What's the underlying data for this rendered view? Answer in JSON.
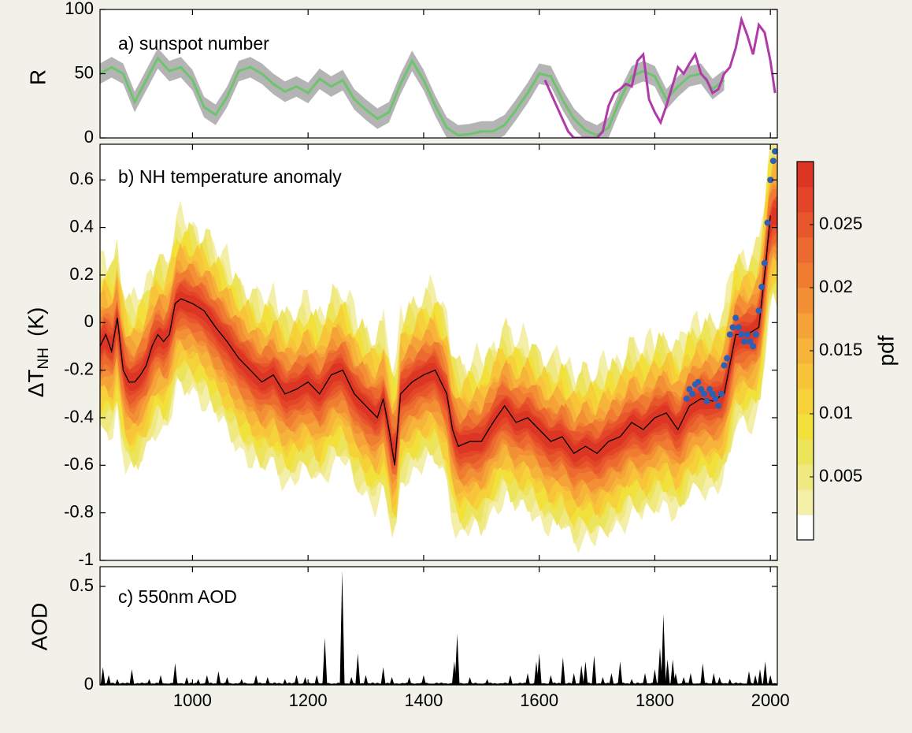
{
  "chart_data": [
    {
      "type": "line",
      "panel_label": "a) sunspot number",
      "ylabel": "R",
      "xlim": [
        840,
        2012
      ],
      "ylim": [
        0,
        100
      ],
      "yticks": [
        0,
        50,
        100
      ],
      "x_ticks_shown": false,
      "series": [
        {
          "color": "#6cc56c",
          "band_color": "#b4b4b4",
          "x": [
            840,
            860,
            880,
            900,
            920,
            940,
            960,
            980,
            1000,
            1020,
            1040,
            1060,
            1080,
            1100,
            1120,
            1140,
            1160,
            1180,
            1200,
            1220,
            1240,
            1260,
            1280,
            1300,
            1320,
            1340,
            1360,
            1380,
            1400,
            1420,
            1440,
            1460,
            1480,
            1500,
            1520,
            1540,
            1560,
            1580,
            1600,
            1620,
            1640,
            1660,
            1680,
            1700,
            1720,
            1740,
            1760,
            1780,
            1800,
            1820,
            1840,
            1860,
            1880,
            1900,
            1920
          ],
          "y": [
            50,
            55,
            50,
            28,
            45,
            62,
            52,
            55,
            45,
            24,
            18,
            32,
            52,
            55,
            50,
            42,
            36,
            40,
            35,
            46,
            40,
            45,
            30,
            22,
            15,
            20,
            42,
            60,
            45,
            25,
            8,
            2,
            3,
            5,
            5,
            10,
            22,
            35,
            50,
            48,
            30,
            15,
            6,
            2,
            8,
            30,
            48,
            52,
            48,
            30,
            40,
            48,
            50,
            38,
            45
          ],
          "band_half_width": 8
        },
        {
          "color": "#b03aa8",
          "x": [
            1610,
            1625,
            1640,
            1650,
            1660,
            1670,
            1680,
            1690,
            1700,
            1710,
            1720,
            1730,
            1740,
            1750,
            1760,
            1770,
            1780,
            1790,
            1800,
            1810,
            1820,
            1830,
            1840,
            1850,
            1860,
            1870,
            1880,
            1890,
            1900,
            1910,
            1920,
            1930,
            1940,
            1950,
            1960,
            1970,
            1980,
            1990,
            2000,
            2008
          ],
          "y": [
            45,
            30,
            15,
            5,
            0,
            0,
            0,
            0,
            0,
            5,
            25,
            35,
            38,
            42,
            40,
            60,
            65,
            30,
            20,
            12,
            25,
            40,
            55,
            50,
            58,
            65,
            50,
            45,
            35,
            38,
            50,
            55,
            70,
            92,
            80,
            65,
            88,
            82,
            60,
            35
          ]
        }
      ]
    },
    {
      "type": "heatmap",
      "panel_label": "b) NH temperature anomaly",
      "ylabel": "ΔT",
      "ylabel_subscript": "NH",
      "ylabel_unit": "(K)",
      "xlim": [
        840,
        2012
      ],
      "ylim": [
        -1,
        0.75
      ],
      "yticks": [
        -1,
        -0.8,
        -0.6,
        -0.4,
        -0.2,
        0,
        0.2,
        0.4,
        0.6
      ],
      "ytick_labels": [
        "-1",
        "-0.8",
        "-0.6",
        "-0.4",
        "-0.2",
        "0",
        "0.2",
        "0.4",
        "0.6"
      ],
      "x_ticks_shown": false,
      "median": {
        "color": "#000000",
        "x": [
          840,
          850,
          860,
          870,
          880,
          890,
          900,
          910,
          920,
          930,
          940,
          950,
          960,
          970,
          980,
          1000,
          1020,
          1040,
          1060,
          1080,
          1100,
          1120,
          1140,
          1160,
          1180,
          1200,
          1220,
          1240,
          1260,
          1280,
          1300,
          1320,
          1330,
          1340,
          1350,
          1360,
          1380,
          1400,
          1420,
          1440,
          1450,
          1460,
          1480,
          1500,
          1520,
          1540,
          1560,
          1580,
          1600,
          1620,
          1640,
          1660,
          1680,
          1700,
          1720,
          1740,
          1760,
          1780,
          1800,
          1820,
          1840,
          1860,
          1880,
          1900,
          1920,
          1940,
          1960,
          1980,
          1990,
          2000
        ],
        "y": [
          -0.1,
          -0.05,
          -0.12,
          0.02,
          -0.2,
          -0.25,
          -0.25,
          -0.22,
          -0.18,
          -0.1,
          -0.05,
          -0.08,
          -0.05,
          0.08,
          0.1,
          0.08,
          0.05,
          -0.02,
          -0.08,
          -0.15,
          -0.2,
          -0.25,
          -0.22,
          -0.3,
          -0.28,
          -0.25,
          -0.3,
          -0.22,
          -0.2,
          -0.3,
          -0.35,
          -0.4,
          -0.32,
          -0.45,
          -0.6,
          -0.3,
          -0.25,
          -0.22,
          -0.2,
          -0.3,
          -0.45,
          -0.52,
          -0.5,
          -0.5,
          -0.42,
          -0.35,
          -0.42,
          -0.4,
          -0.45,
          -0.5,
          -0.48,
          -0.55,
          -0.52,
          -0.55,
          -0.5,
          -0.48,
          -0.42,
          -0.45,
          -0.4,
          -0.38,
          -0.45,
          -0.35,
          -0.32,
          -0.33,
          -0.3,
          -0.05,
          -0.05,
          -0.02,
          0.2,
          0.45
        ],
        "band_half_width": 0.3
      },
      "observations": {
        "color": "#2f5fb5",
        "x": [
          1855,
          1860,
          1865,
          1870,
          1875,
          1880,
          1885,
          1890,
          1895,
          1900,
          1905,
          1910,
          1915,
          1920,
          1925,
          1930,
          1935,
          1940,
          1945,
          1950,
          1955,
          1960,
          1965,
          1970,
          1975,
          1980,
          1985,
          1990,
          1995,
          2000,
          2005,
          2008
        ],
        "y": [
          -0.32,
          -0.28,
          -0.3,
          -0.26,
          -0.25,
          -0.28,
          -0.3,
          -0.33,
          -0.28,
          -0.3,
          -0.32,
          -0.35,
          -0.3,
          -0.18,
          -0.15,
          -0.05,
          -0.02,
          0.02,
          -0.02,
          -0.05,
          -0.08,
          -0.05,
          -0.08,
          -0.1,
          -0.05,
          0.05,
          0.15,
          0.25,
          0.42,
          0.6,
          0.68,
          0.72
        ]
      },
      "colorbar": {
        "label": "pdf",
        "ticks": [
          0.005,
          0.01,
          0.015,
          0.02,
          0.025
        ],
        "tick_labels": [
          "0.005",
          "0.01",
          "0.015",
          "0.02",
          "0.025"
        ],
        "range": [
          0,
          0.03
        ],
        "colors": [
          "#ffffff",
          "#f3eea8",
          "#f0e880",
          "#ece45a",
          "#f2e13a",
          "#f6d23a",
          "#f8c43a",
          "#f6b43a",
          "#f5a238",
          "#f38f35",
          "#f07c32",
          "#ec6a2f",
          "#e7572b",
          "#e24527",
          "#dc3524"
        ]
      }
    },
    {
      "type": "bar",
      "panel_label": "c) 550nm AOD",
      "ylabel": "AOD",
      "xlim": [
        840,
        2012
      ],
      "ylim": [
        0,
        0.6
      ],
      "yticks": [
        0,
        0.5
      ],
      "ytick_labels": [
        "0",
        "0.5"
      ],
      "xticks": [
        1000,
        1200,
        1400,
        1600,
        1800,
        2000
      ],
      "spikes": {
        "x": [
          845,
          855,
          870,
          895,
          925,
          945,
          970,
          990,
          1010,
          1025,
          1045,
          1060,
          1085,
          1110,
          1130,
          1160,
          1180,
          1195,
          1215,
          1229,
          1259,
          1275,
          1286,
          1300,
          1330,
          1345,
          1375,
          1400,
          1453,
          1458,
          1480,
          1510,
          1550,
          1580,
          1595,
          1600,
          1620,
          1641,
          1660,
          1673,
          1680,
          1695,
          1710,
          1725,
          1740,
          1760,
          1783,
          1800,
          1809,
          1815,
          1822,
          1831,
          1836,
          1850,
          1862,
          1883,
          1902,
          1912,
          1930,
          1963,
          1974,
          1982,
          1991,
          2000
        ],
        "y": [
          0.09,
          0.05,
          0.03,
          0.08,
          0.03,
          0.05,
          0.11,
          0.04,
          0.03,
          0.05,
          0.07,
          0.04,
          0.03,
          0.05,
          0.04,
          0.03,
          0.05,
          0.04,
          0.05,
          0.24,
          0.58,
          0.04,
          0.16,
          0.05,
          0.09,
          0.04,
          0.04,
          0.05,
          0.12,
          0.26,
          0.04,
          0.03,
          0.05,
          0.06,
          0.12,
          0.16,
          0.05,
          0.14,
          0.06,
          0.1,
          0.12,
          0.15,
          0.04,
          0.06,
          0.12,
          0.03,
          0.06,
          0.08,
          0.19,
          0.36,
          0.13,
          0.13,
          0.06,
          0.04,
          0.06,
          0.11,
          0.06,
          0.04,
          0.03,
          0.07,
          0.05,
          0.08,
          0.12,
          0.05
        ]
      }
    }
  ]
}
